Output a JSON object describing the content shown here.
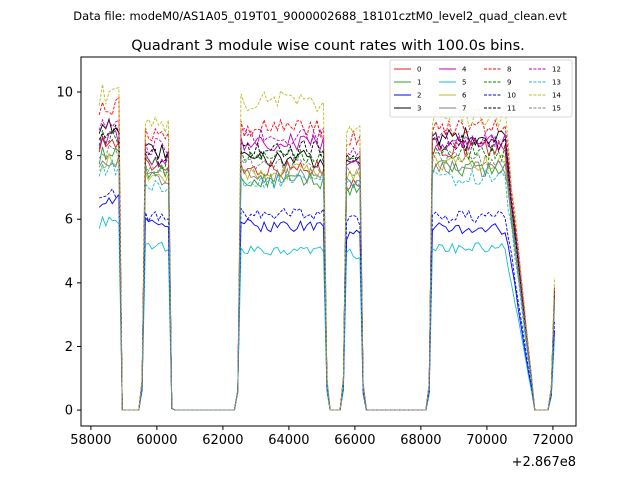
{
  "chart_data": {
    "type": "line",
    "suptitle": "Data file: modeM0/AS1A05_019T01_9000002688_18101cztM0_level2_quad_clean.evt",
    "title": "Quadrant 3 module wise count rates with 100.0s bins.",
    "xlabel": "",
    "ylabel": "",
    "x_offset_label": "+2.867e8",
    "xlim": [
      57700,
      72700
    ],
    "ylim": [
      -0.5,
      11.1
    ],
    "xticks": [
      58000,
      60000,
      62000,
      64000,
      66000,
      68000,
      70000,
      72000
    ],
    "yticks": [
      0,
      2,
      4,
      6,
      8,
      10
    ],
    "xtick_labels": [
      "58000",
      "60000",
      "62000",
      "64000",
      "66000",
      "68000",
      "70000",
      "72000"
    ],
    "ytick_labels": [
      "0",
      "2",
      "4",
      "6",
      "8",
      "10"
    ],
    "legend_position": "top-right",
    "series": [
      {
        "name": "0",
        "color": "#e41a1c",
        "dash": "solid",
        "bright": [
          8.4,
          7.7,
          7.6,
          7.1,
          8.2
        ]
      },
      {
        "name": "1",
        "color": "#2ca02c",
        "dash": "solid",
        "bright": [
          8.0,
          7.5,
          7.2,
          7.0,
          7.6
        ]
      },
      {
        "name": "2",
        "color": "#0000ff",
        "dash": "solid",
        "bright": [
          6.6,
          5.9,
          5.8,
          5.5,
          5.7
        ]
      },
      {
        "name": "3",
        "color": "#000000",
        "dash": "solid",
        "bright": [
          9.0,
          8.1,
          7.9,
          7.8,
          8.6
        ]
      },
      {
        "name": "4",
        "color": "#bf00bf",
        "dash": "solid",
        "bright": [
          8.5,
          7.9,
          8.4,
          7.9,
          8.4
        ]
      },
      {
        "name": "5",
        "color": "#17becf",
        "dash": "solid",
        "bright": [
          5.9,
          5.1,
          5.0,
          4.9,
          5.1
        ]
      },
      {
        "name": "6",
        "color": "#bcbd22",
        "dash": "solid",
        "bright": [
          7.8,
          7.3,
          7.5,
          7.4,
          7.8
        ]
      },
      {
        "name": "7",
        "color": "#7f7f7f",
        "dash": "solid",
        "bright": [
          7.9,
          7.3,
          7.4,
          7.2,
          7.6
        ]
      },
      {
        "name": "8",
        "color": "#ff0000",
        "dash": "dashed",
        "bright": [
          9.6,
          8.7,
          8.9,
          8.5,
          8.9
        ]
      },
      {
        "name": "9",
        "color": "#008000",
        "dash": "dashed",
        "bright": [
          8.6,
          7.8,
          8.0,
          7.7,
          8.1
        ]
      },
      {
        "name": "10",
        "color": "#0000ff",
        "dash": "dashed",
        "bright": [
          6.9,
          6.1,
          6.2,
          6.0,
          6.1
        ]
      },
      {
        "name": "11",
        "color": "#000000",
        "dash": "dashed",
        "bright": [
          8.8,
          8.0,
          8.2,
          7.9,
          8.4
        ]
      },
      {
        "name": "12",
        "color": "#bf00bf",
        "dash": "dashed",
        "bright": [
          9.1,
          8.3,
          8.6,
          8.2,
          8.5
        ]
      },
      {
        "name": "13",
        "color": "#17becf",
        "dash": "dashed",
        "bright": [
          7.6,
          7.0,
          7.2,
          7.0,
          7.3
        ]
      },
      {
        "name": "14",
        "color": "#bcbd22",
        "dash": "dashed",
        "bright": [
          9.9,
          8.9,
          9.7,
          8.8,
          9.2
        ]
      },
      {
        "name": "15",
        "color": "#7f7f7f",
        "dash": "dashed",
        "bright": [
          8.2,
          7.6,
          7.7,
          7.5,
          7.9
        ]
      }
    ]
  }
}
